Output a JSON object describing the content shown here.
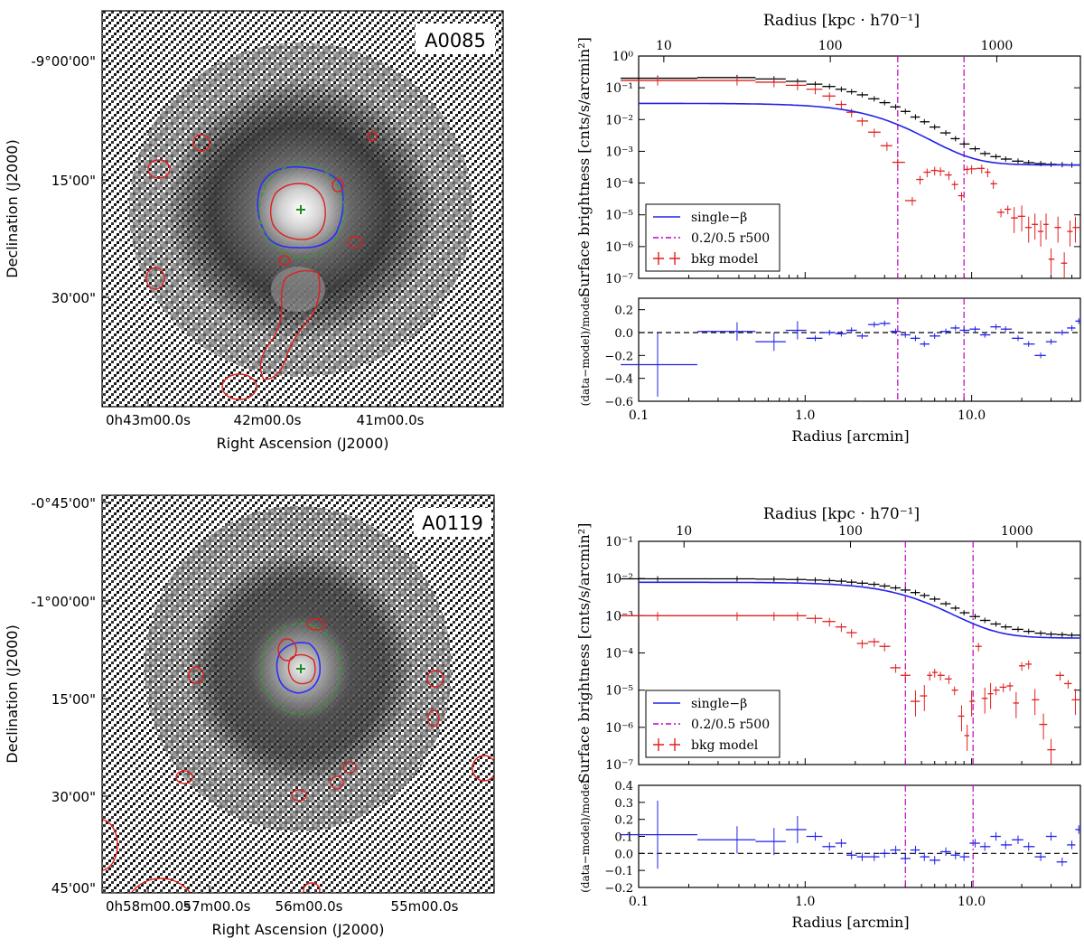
{
  "figure": {
    "panels": [
      {
        "cluster": "A0085",
        "image": {
          "ylabel": "Declination (J2000)",
          "xlabel": "Right Ascension (J2000)",
          "ra_ticks": [
            "0h43m00.0s",
            "42m00.0s",
            "41m00.0s"
          ],
          "dec_ticks": [
            "-9°00'00\"",
            "15'00\"",
            "30'00\""
          ]
        }
      },
      {
        "cluster": "A0119",
        "image": {
          "ylabel": "Declination (J2000)",
          "xlabel": "Right Ascension (J2000)",
          "ra_ticks": [
            "0h58m00.0s",
            "57m00.0s",
            "56m00.0s",
            "55m00.0s"
          ],
          "dec_ticks": [
            "-0°45'00\"",
            "-1°00'00\"",
            "15'00\"",
            "30'00\"",
            "45'00\""
          ]
        }
      }
    ]
  },
  "chart_data": [
    {
      "type": "line",
      "cluster": "A0085",
      "top_axis_label": "Radius [kpc · h70⁻¹]",
      "top_ticks": [
        10,
        100,
        1000
      ],
      "top_tick_labels": [
        "10",
        "100",
        "1000"
      ],
      "ylabel": "Surface brightness [cnts/s/arcmin²]",
      "xlabel": "Radius [arcmin]",
      "xscale": "log",
      "yscale": "log",
      "xlim": [
        0.1,
        45
      ],
      "ylim": [
        1e-07,
        1
      ],
      "x_ticks": [
        0.1,
        1.0,
        10.0
      ],
      "x_tick_labels": [
        "0.1",
        "1.0",
        "10.0"
      ],
      "y_ticks": [
        1e-07,
        1e-06,
        1e-05,
        0.0001,
        0.001,
        0.01,
        0.1,
        1
      ],
      "y_tick_labels": [
        "10⁻⁷",
        "10⁻⁶",
        "10⁻⁵",
        "10⁻⁴",
        "10⁻³",
        "10⁻²",
        "10⁻¹",
        "10⁰"
      ],
      "vlines_arcmin": [
        3.6,
        9.0
      ],
      "legend": {
        "position": "lower-left",
        "entries": [
          "single−β",
          "0.2/0.5 r500",
          "bkg model"
        ]
      },
      "model": {
        "name": "single−β",
        "S0": 0.032,
        "rc_arcmin": 3.5,
        "beta": 0.9,
        "bkg": 0.00037
      },
      "total_data": {
        "name": "data",
        "x": [
          0.13,
          0.39,
          0.65,
          0.9,
          1.15,
          1.4,
          1.65,
          1.9,
          2.2,
          2.6,
          3.0,
          3.5,
          4.0,
          4.6,
          5.2,
          6.0,
          7.0,
          8.0,
          9.0,
          10.5,
          12.0,
          14.0,
          16.0,
          19.0,
          22.0,
          26.0,
          30.0,
          35.0,
          40.0
        ],
        "y": [
          0.2,
          0.21,
          0.19,
          0.16,
          0.13,
          0.11,
          0.09,
          0.075,
          0.06,
          0.045,
          0.034,
          0.025,
          0.018,
          0.012,
          0.0085,
          0.0058,
          0.0038,
          0.0025,
          0.0017,
          0.0012,
          0.00085,
          0.00068,
          0.00057,
          0.00049,
          0.00044,
          0.00041,
          0.00039,
          0.00038,
          0.00037
        ]
      },
      "bkg_model": {
        "name": "bkg model",
        "x": [
          0.13,
          0.39,
          0.65,
          0.9,
          1.15,
          1.4,
          1.65,
          1.9,
          2.2,
          2.6,
          3.1,
          3.6,
          4.4,
          4.9,
          5.4,
          6.0,
          6.5,
          7.3,
          7.9,
          8.7,
          9.4,
          10.0,
          11.5,
          12.5,
          13.5,
          15.0,
          16.5,
          18.0,
          20.0,
          22.0,
          24.0,
          26.0,
          28.0,
          30.0,
          33.0,
          36.0,
          39.0,
          42.0
        ],
        "y": [
          0.17,
          0.17,
          0.15,
          0.12,
          0.09,
          0.055,
          0.03,
          0.017,
          0.009,
          0.004,
          0.0015,
          0.00045,
          2.8e-05,
          0.00013,
          0.00022,
          0.00025,
          0.00024,
          0.00018,
          9e-05,
          4e-05,
          0.00027,
          0.00028,
          0.00029,
          0.00022,
          9.5e-05,
          1.2e-05,
          1.5e-05,
          8e-06,
          9e-06,
          4e-06,
          5e-06,
          3e-06,
          5e-06,
          4e-07,
          4e-06,
          3e-07,
          3e-06,
          4e-06
        ]
      },
      "residuals": {
        "ylabel": "(data−model)/model",
        "ylim": [
          -0.6,
          0.3
        ],
        "y_ticks": [
          -0.6,
          -0.4,
          -0.2,
          0.0,
          0.2
        ],
        "y_tick_labels": [
          "−0.6",
          "−0.4",
          "−0.2",
          "0.0",
          "0.2"
        ],
        "x": [
          0.13,
          0.39,
          0.65,
          0.9,
          1.15,
          1.4,
          1.65,
          1.9,
          2.2,
          2.6,
          3.0,
          3.5,
          4.0,
          4.6,
          5.2,
          6.0,
          7.0,
          8.0,
          9.0,
          10.5,
          12.0,
          14.0,
          16.0,
          19.0,
          22.0,
          26.0,
          30.0,
          35.0,
          40.0,
          44.0
        ],
        "y": [
          -0.28,
          0.01,
          -0.08,
          0.02,
          -0.05,
          0.0,
          -0.01,
          0.02,
          -0.03,
          0.07,
          0.08,
          0.01,
          -0.02,
          -0.05,
          -0.1,
          -0.03,
          0.01,
          0.04,
          0.02,
          0.03,
          -0.02,
          0.05,
          0.03,
          -0.05,
          -0.1,
          -0.2,
          -0.08,
          0.0,
          0.04,
          0.1
        ]
      }
    },
    {
      "type": "line",
      "cluster": "A0119",
      "top_axis_label": "Radius [kpc · h70⁻¹]",
      "top_ticks": [
        10,
        100,
        1000
      ],
      "top_tick_labels": [
        "10",
        "100",
        "1000"
      ],
      "ylabel": "Surface brightness [cnts/s/arcmin²]",
      "xlabel": "Radius [arcmin]",
      "xscale": "log",
      "yscale": "log",
      "xlim": [
        0.1,
        45
      ],
      "ylim": [
        1e-07,
        0.1
      ],
      "x_ticks": [
        0.1,
        1.0,
        10.0
      ],
      "x_tick_labels": [
        "0.1",
        "1.0",
        "10.0"
      ],
      "y_ticks": [
        1e-07,
        1e-06,
        1e-05,
        0.0001,
        0.001,
        0.01,
        0.1
      ],
      "y_tick_labels": [
        "10⁻⁷",
        "10⁻⁶",
        "10⁻⁵",
        "10⁻⁴",
        "10⁻³",
        "10⁻²",
        "10⁻¹"
      ],
      "vlines_arcmin": [
        4.0,
        10.2
      ],
      "legend": {
        "position": "lower-left",
        "entries": [
          "single−β",
          "0.2/0.5 r500",
          "bkg model"
        ]
      },
      "model": {
        "name": "single−β",
        "S0": 0.0077,
        "rc_arcmin": 5.5,
        "beta": 0.85,
        "bkg": 0.00025
      },
      "total_data": {
        "name": "data",
        "x": [
          0.13,
          0.39,
          0.65,
          0.9,
          1.15,
          1.4,
          1.65,
          1.9,
          2.2,
          2.6,
          3.0,
          3.5,
          4.0,
          4.6,
          5.2,
          6.0,
          7.0,
          8.0,
          9.0,
          10.5,
          12.0,
          14.0,
          16.0,
          19.0,
          22.0,
          26.0,
          30.0,
          35.0,
          40.0
        ],
        "y": [
          0.0098,
          0.0098,
          0.0096,
          0.0094,
          0.0091,
          0.0088,
          0.0085,
          0.008,
          0.0075,
          0.007,
          0.0063,
          0.0056,
          0.0049,
          0.0042,
          0.0035,
          0.0028,
          0.0021,
          0.0016,
          0.0012,
          0.00095,
          0.00075,
          0.0006,
          0.0005,
          0.00043,
          0.00038,
          0.00034,
          0.00032,
          0.00031,
          0.0003
        ]
      },
      "bkg_model": {
        "name": "bkg model",
        "x": [
          0.13,
          0.39,
          0.65,
          0.9,
          1.15,
          1.4,
          1.65,
          1.9,
          2.2,
          2.6,
          3.0,
          3.5,
          4.0,
          4.6,
          5.2,
          5.6,
          6.0,
          6.5,
          7.3,
          7.9,
          8.7,
          9.4,
          10.0,
          11.0,
          12.0,
          13.0,
          14.0,
          15.5,
          17.0,
          18.5,
          20.0,
          22.0,
          24.0,
          27.0,
          30.0,
          34.0,
          38.0,
          42.0
        ],
        "y": [
          0.001,
          0.001,
          0.001,
          0.001,
          0.00085,
          0.0007,
          0.0005,
          0.00035,
          0.00018,
          0.0002,
          0.00015,
          4e-05,
          2.5e-05,
          5e-06,
          7e-06,
          2.5e-05,
          3e-05,
          2.5e-05,
          2e-05,
          1e-05,
          2e-06,
          6e-07,
          5e-06,
          0.00015,
          6e-06,
          8e-06,
          1e-05,
          1.2e-05,
          1.3e-05,
          4.5e-06,
          4.5e-05,
          5e-05,
          5.5e-06,
          1.2e-06,
          2.5e-07,
          2.5e-05,
          1.5e-05,
          5.5e-06
        ]
      },
      "residuals": {
        "ylabel": "(data−model)/model",
        "ylim": [
          -0.2,
          0.4
        ],
        "y_ticks": [
          -0.2,
          -0.1,
          0.0,
          0.1,
          0.2,
          0.3,
          0.4
        ],
        "y_tick_labels": [
          "−0.2",
          "−0.1",
          "0.0",
          "0.1",
          "0.2",
          "0.3",
          "0.4"
        ],
        "x": [
          0.13,
          0.39,
          0.65,
          0.9,
          1.15,
          1.4,
          1.65,
          1.9,
          2.2,
          2.6,
          3.0,
          3.5,
          4.0,
          4.6,
          5.2,
          6.0,
          7.0,
          8.0,
          9.0,
          10.5,
          12.0,
          14.0,
          16.0,
          19.0,
          22.0,
          26.0,
          30.0,
          35.0,
          40.0,
          44.0
        ],
        "y": [
          0.11,
          0.08,
          0.07,
          0.14,
          0.1,
          0.04,
          0.06,
          -0.01,
          -0.02,
          -0.02,
          0.0,
          0.02,
          -0.03,
          0.02,
          -0.02,
          -0.04,
          0.01,
          -0.01,
          -0.02,
          0.06,
          0.04,
          0.1,
          0.05,
          0.08,
          0.04,
          -0.02,
          0.1,
          -0.05,
          0.05,
          0.14
        ]
      }
    }
  ]
}
